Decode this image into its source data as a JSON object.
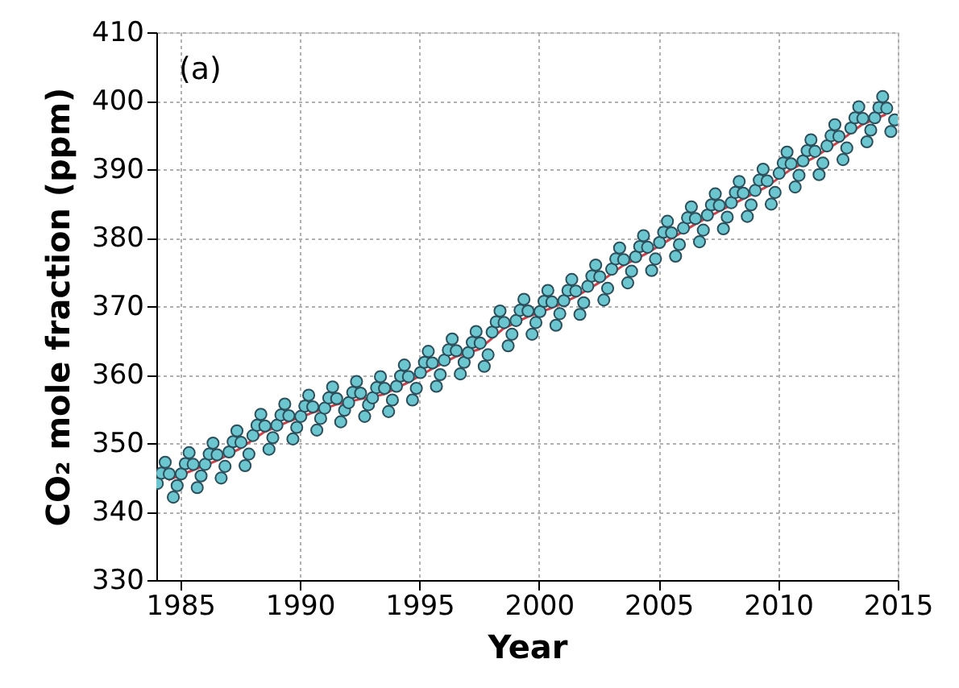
{
  "chart_data": {
    "type": "scatter",
    "xlabel": "Year",
    "ylabel": "CO₂ mole fraction (ppm)",
    "annotations": [
      "(a)"
    ],
    "xlim": [
      1984,
      2015
    ],
    "xticks": [
      1985,
      1990,
      1995,
      2000,
      2005,
      2010,
      2015
    ],
    "ylim": [
      330,
      410
    ],
    "yticks": [
      330,
      340,
      350,
      360,
      370,
      380,
      390,
      400,
      410
    ],
    "grid": true,
    "series": [
      {
        "type": "line",
        "color": "#d04048",
        "marker": "none",
        "line_style": "solid",
        "x": [
          1984.5,
          1985.5,
          1986.5,
          1987.5,
          1988.5,
          1989.5,
          1990.5,
          1991.5,
          1992.5,
          1993.5,
          1994.5,
          1995.5,
          1996.5,
          1997.5,
          1998.5,
          1999.5,
          2000.5,
          2001.5,
          2002.5,
          2003.5,
          2004.5,
          2005.5,
          2006.5,
          2007.5,
          2008.5,
          2009.5,
          2010.5,
          2011.5,
          2012.5,
          2013.5,
          2014.5
        ],
        "values": [
          344.6,
          346.0,
          347.4,
          349.2,
          351.6,
          353.1,
          354.4,
          355.6,
          356.4,
          357.1,
          358.8,
          360.8,
          362.6,
          363.7,
          366.7,
          368.4,
          369.7,
          371.3,
          373.4,
          375.9,
          377.7,
          379.8,
          381.9,
          383.8,
          385.6,
          387.4,
          389.9,
          391.7,
          393.9,
          396.5,
          398.0
        ]
      },
      {
        "color": "#6cc6d0",
        "marker": "circle",
        "x": [
          1984.04,
          1984.21,
          1984.37,
          1984.54,
          1984.71,
          1984.87,
          1985.04,
          1985.21,
          1985.37,
          1985.54,
          1985.71,
          1985.87,
          1986.04,
          1986.21,
          1986.37,
          1986.54,
          1986.71,
          1986.87,
          1987.04,
          1987.21,
          1987.37,
          1987.54,
          1987.71,
          1987.87,
          1988.04,
          1988.21,
          1988.37,
          1988.54,
          1988.71,
          1988.87,
          1989.04,
          1989.21,
          1989.37,
          1989.54,
          1989.71,
          1989.87,
          1990.04,
          1990.21,
          1990.37,
          1990.54,
          1990.71,
          1990.87,
          1991.04,
          1991.21,
          1991.37,
          1991.54,
          1991.71,
          1991.87,
          1992.04,
          1992.21,
          1992.37,
          1992.54,
          1992.71,
          1992.87,
          1993.04,
          1993.21,
          1993.37,
          1993.54,
          1993.71,
          1993.87,
          1994.04,
          1994.21,
          1994.37,
          1994.54,
          1994.71,
          1994.87,
          1995.04,
          1995.21,
          1995.37,
          1995.54,
          1995.71,
          1995.87,
          1996.04,
          1996.21,
          1996.37,
          1996.54,
          1996.71,
          1996.87,
          1997.04,
          1997.21,
          1997.37,
          1997.54,
          1997.71,
          1997.87,
          1998.04,
          1998.21,
          1998.37,
          1998.54,
          1998.71,
          1998.87,
          1999.04,
          1999.21,
          1999.37,
          1999.54,
          1999.71,
          1999.87,
          2000.04,
          2000.21,
          2000.37,
          2000.54,
          2000.71,
          2000.87,
          2001.04,
          2001.21,
          2001.37,
          2001.54,
          2001.71,
          2001.87,
          2002.04,
          2002.21,
          2002.37,
          2002.54,
          2002.71,
          2002.87,
          2003.04,
          2003.21,
          2003.37,
          2003.54,
          2003.71,
          2003.87,
          2004.04,
          2004.21,
          2004.37,
          2004.54,
          2004.71,
          2004.87,
          2005.04,
          2005.21,
          2005.37,
          2005.54,
          2005.71,
          2005.87,
          2006.04,
          2006.21,
          2006.37,
          2006.54,
          2006.71,
          2006.87,
          2007.04,
          2007.21,
          2007.37,
          2007.54,
          2007.71,
          2007.87,
          2008.04,
          2008.21,
          2008.37,
          2008.54,
          2008.71,
          2008.87,
          2009.04,
          2009.21,
          2009.37,
          2009.54,
          2009.71,
          2009.87,
          2010.04,
          2010.21,
          2010.37,
          2010.54,
          2010.71,
          2010.87,
          2011.04,
          2011.21,
          2011.37,
          2011.54,
          2011.71,
          2011.87,
          2012.04,
          2012.21,
          2012.37,
          2012.54,
          2012.71,
          2012.87,
          2013.04,
          2013.21,
          2013.37,
          2013.54,
          2013.71,
          2013.87,
          2014.04,
          2014.21,
          2014.37,
          2014.54,
          2014.71,
          2014.87
        ],
        "values": [
          344.1,
          345.6,
          347.2,
          345.5,
          342.1,
          343.8,
          345.5,
          347.0,
          348.6,
          346.9,
          343.5,
          345.2,
          346.9,
          348.4,
          350.0,
          348.3,
          344.9,
          346.6,
          348.7,
          350.2,
          351.8,
          350.1,
          346.7,
          348.4,
          351.1,
          352.6,
          354.2,
          352.5,
          349.1,
          350.8,
          352.6,
          354.1,
          355.7,
          354.0,
          350.6,
          352.3,
          353.9,
          355.4,
          357.0,
          355.3,
          351.9,
          353.6,
          355.1,
          356.6,
          358.2,
          356.5,
          353.1,
          354.8,
          355.9,
          357.4,
          359.0,
          357.3,
          353.9,
          355.6,
          356.6,
          358.1,
          359.7,
          358.0,
          354.6,
          356.3,
          358.3,
          359.8,
          361.4,
          359.7,
          356.3,
          358.0,
          360.3,
          361.8,
          363.4,
          361.7,
          358.3,
          360.0,
          362.1,
          363.6,
          365.2,
          363.5,
          360.1,
          361.8,
          363.2,
          364.7,
          366.3,
          364.6,
          361.2,
          362.9,
          366.2,
          367.7,
          369.3,
          367.6,
          364.2,
          365.9,
          367.9,
          369.4,
          371.0,
          369.3,
          365.9,
          367.6,
          369.2,
          370.7,
          372.3,
          370.6,
          367.2,
          368.9,
          370.8,
          372.3,
          373.9,
          372.2,
          368.8,
          370.5,
          372.9,
          374.4,
          376.0,
          374.3,
          370.9,
          372.6,
          375.4,
          376.9,
          378.5,
          376.8,
          373.4,
          375.1,
          377.2,
          378.7,
          380.3,
          378.6,
          375.2,
          376.9,
          379.3,
          380.8,
          382.4,
          380.7,
          377.3,
          379.0,
          381.4,
          382.9,
          384.5,
          382.8,
          379.4,
          381.1,
          383.3,
          384.8,
          386.4,
          384.7,
          381.3,
          383.0,
          385.1,
          386.6,
          388.2,
          386.5,
          383.1,
          384.8,
          386.9,
          388.4,
          390.0,
          388.3,
          384.9,
          386.6,
          389.4,
          390.9,
          392.5,
          390.8,
          387.4,
          389.1,
          391.2,
          392.7,
          394.3,
          392.6,
          389.2,
          390.9,
          393.4,
          394.9,
          396.5,
          394.8,
          391.4,
          393.1,
          396.0,
          397.5,
          399.1,
          397.4,
          394.0,
          395.7,
          397.5,
          399.0,
          400.6,
          398.9,
          395.5,
          397.2
        ]
      }
    ]
  }
}
